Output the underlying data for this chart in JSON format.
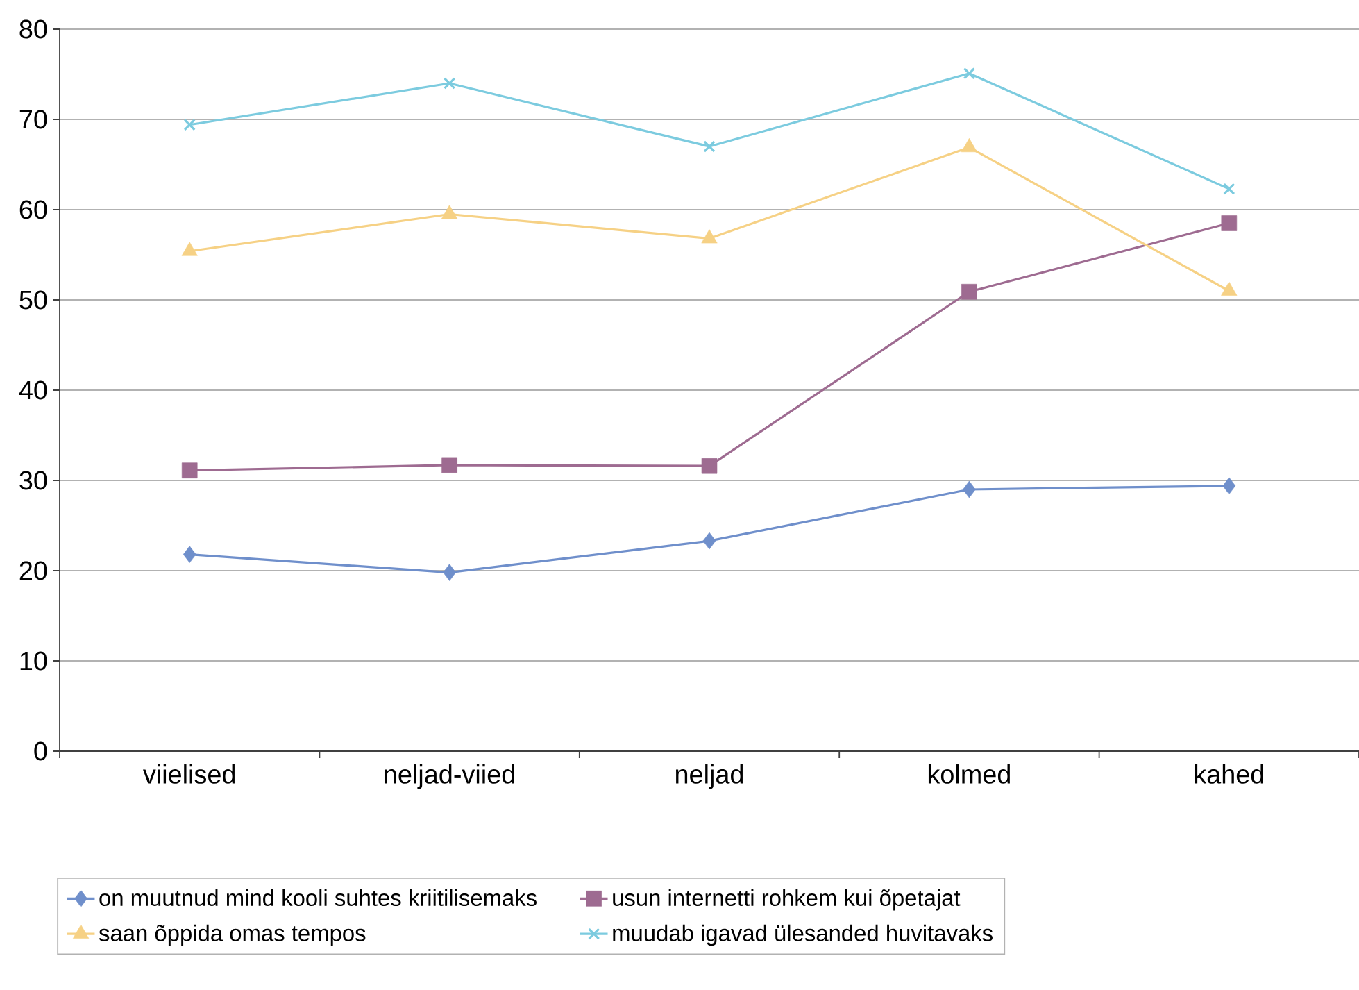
{
  "chart_data": {
    "type": "line",
    "categories": [
      "viielised",
      "neljad-viied",
      "neljad",
      "kolmed",
      "kahed"
    ],
    "series": [
      {
        "name": "on muutnud mind kooli suhtes kriitilisemaks",
        "color": "#6f8fcb",
        "marker": "diamond",
        "values": [
          21.8,
          19.8,
          23.3,
          29.0,
          29.4
        ]
      },
      {
        "name": "usun internetti rohkem kui õpetajat",
        "color": "#9e6b91",
        "marker": "square",
        "values": [
          31.1,
          31.7,
          31.6,
          50.9,
          58.5
        ]
      },
      {
        "name": "saan õppida omas tempos",
        "color": "#f6d185",
        "marker": "triangle",
        "values": [
          55.4,
          59.5,
          56.8,
          66.9,
          51.0
        ]
      },
      {
        "name": "muudab igavad ülesanded huvitavaks",
        "color": "#7ccbdf",
        "marker": "cross",
        "values": [
          69.4,
          74.0,
          67.0,
          75.1,
          62.3
        ]
      }
    ],
    "ylim": [
      0,
      80
    ],
    "yticks": [
      0,
      10,
      20,
      30,
      40,
      50,
      60,
      70,
      80
    ],
    "grid": "y",
    "legend": "bottom"
  }
}
